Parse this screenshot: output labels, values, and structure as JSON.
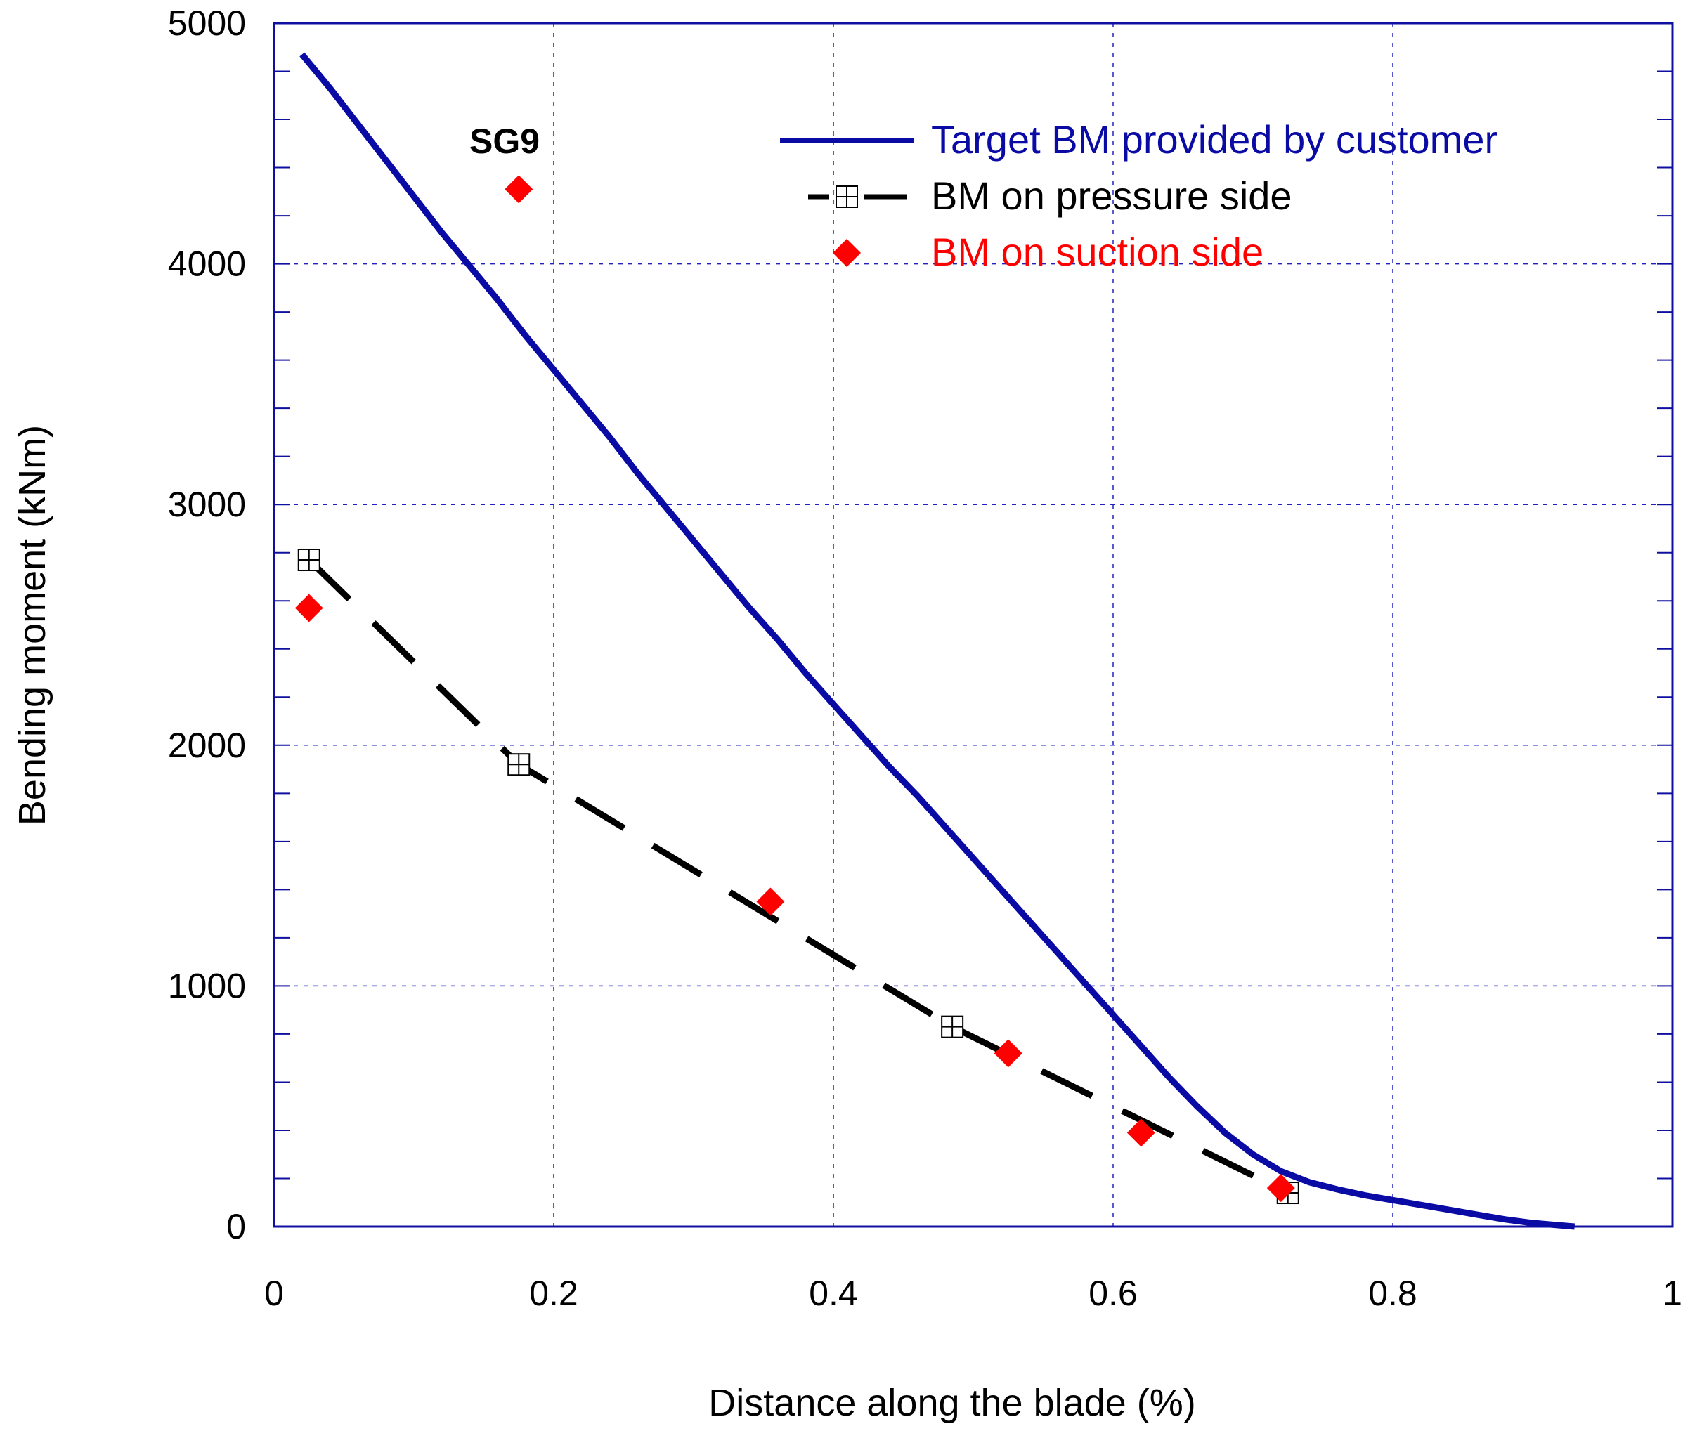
{
  "chart_data": {
    "type": "line",
    "title": "",
    "xlabel": "Distance along the blade (%)",
    "ylabel": "Bending moment (kNm)",
    "xlim": [
      0,
      1
    ],
    "ylim": [
      0,
      5000
    ],
    "x_ticks": [
      "0",
      "0.2",
      "0.4",
      "0.6",
      "0.8",
      "1"
    ],
    "y_ticks": [
      "0",
      "1000",
      "2000",
      "3000",
      "4000",
      "5000"
    ],
    "grid": true,
    "legend_position": "top-right",
    "annotation": {
      "text": "SG9",
      "x": 0.17,
      "y": 4500
    },
    "colors": {
      "target": "#0a0aa5",
      "pressure": "#000000",
      "suction": "#ff0000",
      "grid": "#2020c0",
      "frame": "#1010a0"
    },
    "series": [
      {
        "name": "Target BM provided by customer",
        "style": "solid-line",
        "x": [
          0.02,
          0.04,
          0.06,
          0.08,
          0.1,
          0.12,
          0.14,
          0.16,
          0.18,
          0.2,
          0.22,
          0.24,
          0.26,
          0.28,
          0.3,
          0.32,
          0.34,
          0.36,
          0.38,
          0.4,
          0.42,
          0.44,
          0.46,
          0.48,
          0.5,
          0.52,
          0.54,
          0.56,
          0.58,
          0.6,
          0.62,
          0.64,
          0.66,
          0.68,
          0.7,
          0.72,
          0.74,
          0.76,
          0.78,
          0.8,
          0.82,
          0.84,
          0.86,
          0.88,
          0.9,
          0.92,
          0.93
        ],
        "values": [
          4870,
          4730,
          4580,
          4430,
          4280,
          4130,
          3990,
          3850,
          3700,
          3560,
          3420,
          3280,
          3130,
          2990,
          2850,
          2710,
          2570,
          2440,
          2300,
          2170,
          2040,
          1910,
          1790,
          1660,
          1530,
          1400,
          1270,
          1140,
          1010,
          880,
          750,
          620,
          500,
          390,
          300,
          230,
          185,
          155,
          130,
          110,
          90,
          70,
          50,
          30,
          15,
          5,
          0
        ]
      },
      {
        "name": "BM on pressure side",
        "style": "dashed-line-square-markers",
        "x": [
          0.025,
          0.175,
          0.485,
          0.725
        ],
        "values": [
          2770,
          1920,
          830,
          140
        ]
      },
      {
        "name": "BM on suction side",
        "style": "diamond-markers",
        "x": [
          0.025,
          0.175,
          0.355,
          0.525,
          0.62,
          0.72
        ],
        "values": [
          2570,
          4310,
          1350,
          720,
          390,
          160
        ]
      }
    ]
  }
}
